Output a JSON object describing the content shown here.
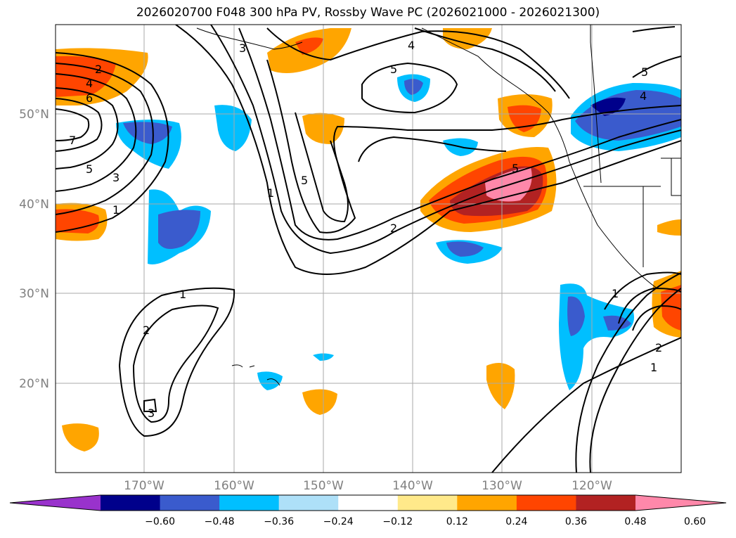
{
  "title": "2026020700 F048 300 hPa PV, Rossby Wave PC (2026021000 - 2026021300)",
  "lat_labels": [
    "50°N",
    "40°N",
    "30°N",
    "20°N"
  ],
  "lon_labels": [
    "170°W",
    "160°W",
    "150°W",
    "140°W",
    "130°W",
    "120°W"
  ],
  "contour_labels": [
    "2",
    "4",
    "6",
    "7",
    "5",
    "3",
    "1",
    "3",
    "4",
    "5",
    "5",
    "1",
    "2",
    "5",
    "1",
    "2",
    "3",
    "4",
    "5",
    "1",
    "2",
    "1"
  ],
  "colorbar": {
    "ticks": [
      "−0.60",
      "−0.48",
      "−0.36",
      "−0.24",
      "−0.12",
      "0.12",
      "0.24",
      "0.36",
      "0.48",
      "0.60"
    ],
    "colors": [
      "#9932cc",
      "#00008b",
      "#3a5bcd",
      "#00bfff",
      "#aee0f8",
      "#ffffff",
      "#ffe98a",
      "#ffa500",
      "#ff4500",
      "#b22222",
      "#ff88aa"
    ]
  }
}
